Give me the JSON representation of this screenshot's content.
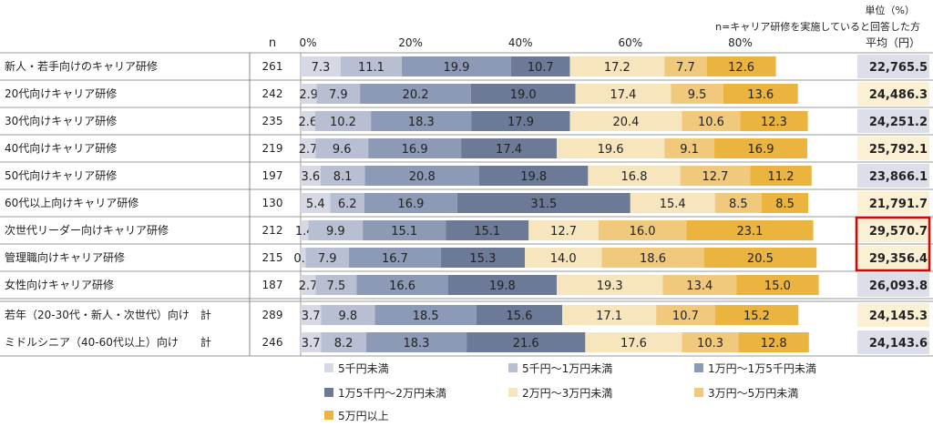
{
  "chart_data": {
    "type": "bar",
    "stacked": true,
    "orientation": "horizontal",
    "unit_label": "単位（%）",
    "n_note": "n=キャリア研修を実施していると回答した方",
    "n_header": "n",
    "avg_header": "平均（円）",
    "xlim": [
      0,
      100
    ],
    "x_ticks": [
      "0%",
      "20%",
      "40%",
      "60%",
      "80%"
    ],
    "x_tick_values": [
      0,
      20,
      40,
      60,
      80
    ],
    "categories": [
      "新人・若手向けのキャリア研修",
      "20代向けキャリア研修",
      "30代向けキャリア研修",
      "40代向けキャリア研修",
      "50代向けキャリア研修",
      "60代以上向けキャリア研修",
      "次世代リーダー向けキャリア研修",
      "管理職向けキャリア研修",
      "女性向けキャリア研修",
      "若年（20-30代・新人・次世代）向け　計",
      "ミドルシニア（40-60代以上）向け　　計"
    ],
    "n": [
      "261",
      "242",
      "235",
      "219",
      "197",
      "130",
      "212",
      "215",
      "187",
      "289",
      "246"
    ],
    "averages": [
      "22,765.5",
      "24,486.3",
      "24,251.2",
      "25,792.1",
      "23,866.1",
      "21,791.7",
      "29,570.7",
      "29,356.4",
      "26,093.8",
      "24,145.3",
      "24,143.6"
    ],
    "highlighted_averages": [
      6,
      7
    ],
    "series": [
      {
        "name": "5千円未満",
        "color": "#d6d8e3",
        "values": [
          7.3,
          2.9,
          2.6,
          2.7,
          3.6,
          5.4,
          1.4,
          0.9,
          2.7,
          3.7,
          3.7
        ]
      },
      {
        "name": "5千円〜1万円未満",
        "color": "#b9bfd2",
        "values": [
          11.1,
          7.9,
          10.2,
          9.6,
          8.1,
          6.2,
          9.9,
          7.9,
          7.5,
          9.8,
          8.2
        ]
      },
      {
        "name": "1万円〜1万5千円未満",
        "color": "#8d9ab5",
        "values": [
          19.9,
          20.2,
          18.3,
          16.9,
          20.8,
          16.9,
          15.1,
          16.7,
          16.6,
          18.5,
          18.3
        ]
      },
      {
        "name": "1万5千円〜2万円未満",
        "color": "#6c7a98",
        "values": [
          10.7,
          19.0,
          17.9,
          17.4,
          19.8,
          31.5,
          15.1,
          15.3,
          19.8,
          15.6,
          21.6
        ]
      },
      {
        "name": "2万円〜3万円未満",
        "color": "#f7e5bd",
        "values": [
          17.2,
          17.4,
          20.4,
          19.6,
          16.8,
          15.4,
          12.7,
          14.0,
          19.3,
          17.1,
          17.6
        ]
      },
      {
        "name": "3万円〜5万円未満",
        "color": "#f1c97c",
        "values": [
          7.7,
          9.5,
          10.6,
          9.1,
          12.7,
          8.5,
          16.0,
          18.6,
          13.4,
          10.7,
          10.3
        ]
      },
      {
        "name": "5万円以上",
        "color": "#ebb43f",
        "values": [
          12.6,
          13.6,
          12.3,
          16.9,
          11.2,
          8.5,
          23.1,
          20.5,
          15.0,
          15.2,
          12.8
        ]
      }
    ]
  }
}
